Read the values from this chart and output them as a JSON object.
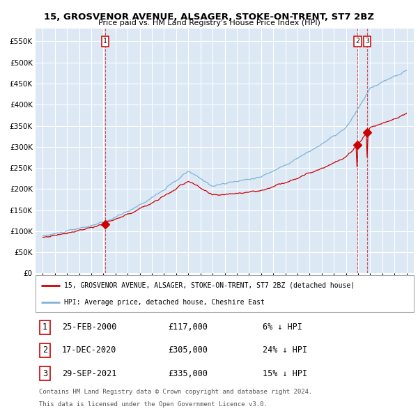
{
  "title": "15, GROSVENOR AVENUE, ALSAGER, STOKE-ON-TRENT, ST7 2BZ",
  "subtitle": "Price paid vs. HM Land Registry's House Price Index (HPI)",
  "legend_red": "15, GROSVENOR AVENUE, ALSAGER, STOKE-ON-TRENT, ST7 2BZ (detached house)",
  "legend_blue": "HPI: Average price, detached house, Cheshire East",
  "footer1": "Contains HM Land Registry data © Crown copyright and database right 2024.",
  "footer2": "This data is licensed under the Open Government Licence v3.0.",
  "transactions": [
    {
      "num": 1,
      "date": "25-FEB-2000",
      "price": "£117,000",
      "pct": "6% ↓ HPI"
    },
    {
      "num": 2,
      "date": "17-DEC-2020",
      "price": "£305,000",
      "pct": "24% ↓ HPI"
    },
    {
      "num": 3,
      "date": "29-SEP-2021",
      "price": "£335,000",
      "pct": "15% ↓ HPI"
    }
  ],
  "ylim": [
    0,
    580000
  ],
  "yticks": [
    0,
    50000,
    100000,
    150000,
    200000,
    250000,
    300000,
    350000,
    400000,
    450000,
    500000,
    550000
  ],
  "x_start_year": 1995,
  "x_end_year": 2025,
  "plot_bg": "#dce9f5",
  "red_color": "#cc0000",
  "blue_color": "#7fb3d8",
  "grid_color": "#ffffff",
  "sale1_year": 2000.15,
  "sale1_price": 117000,
  "sale2_year": 2020.96,
  "sale2_price": 305000,
  "sale3_year": 2021.75,
  "sale3_price": 335000,
  "hpi_seed": 10,
  "red_seed": 77
}
